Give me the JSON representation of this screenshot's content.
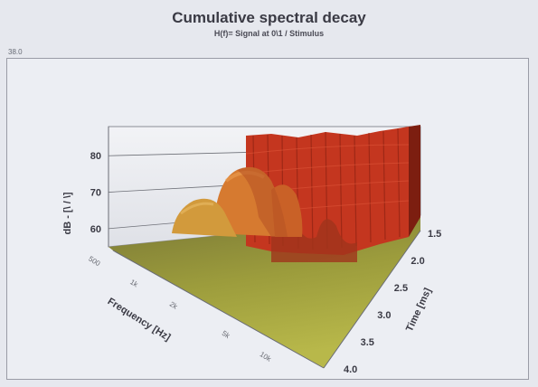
{
  "chart_data": {
    "type": "area",
    "title": "Cumulative spectral decay",
    "subtitle": "H(f)= Signal at 0\\1 / Stimulus",
    "corner_label": "38.0",
    "zlabel": "dB - [\\ / \\]",
    "xlabel": "Frequency [Hz]",
    "ylabel": "Time [ms]",
    "z_ticks": [
      60,
      70,
      80
    ],
    "z_range": [
      55,
      88
    ],
    "time_ticks": [
      "1.5",
      "2.0",
      "2.5",
      "3.0",
      "3.5",
      "4.0"
    ],
    "time_range": [
      1.5,
      4.0
    ],
    "freq_ticks": [
      "500",
      "1k",
      "2k",
      "5k",
      "10k"
    ],
    "freq_range": [
      500,
      20000
    ],
    "colors": {
      "peak": "#c8341e",
      "mid": "#d0772c",
      "floor": "#9a9a3a",
      "background": "#e6e8ee"
    }
  }
}
